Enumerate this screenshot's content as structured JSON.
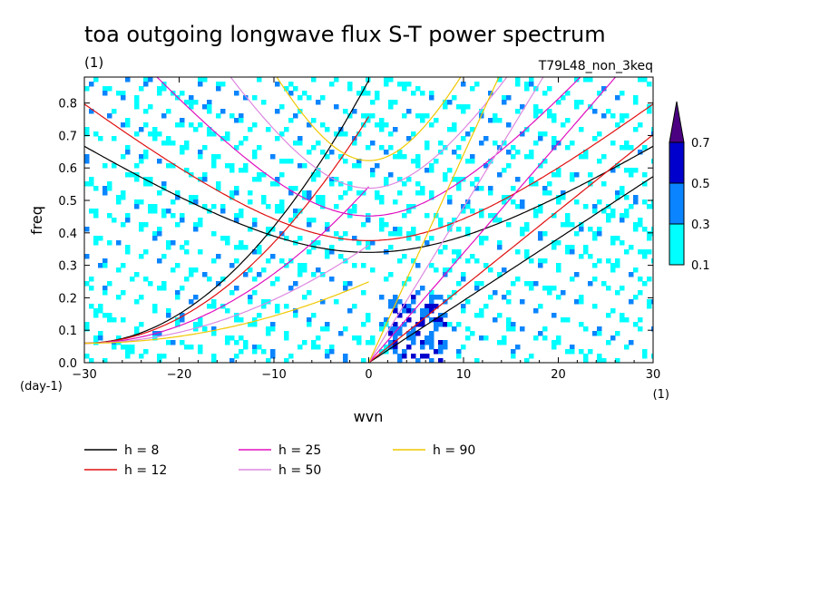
{
  "chart_data": {
    "type": "heatmap",
    "title": "toa outgoing longwave flux S-T power spectrum",
    "subtitle_left": "(1)",
    "subtitle_right": "T79L48_non_3keq",
    "xlabel": "wvn",
    "ylabel": "freq",
    "x_unit": "(1)",
    "y_unit": "(day-1)",
    "xlim": [
      -30,
      30
    ],
    "ylim": [
      0,
      0.88
    ],
    "x_ticks": [
      -30,
      -20,
      -10,
      0,
      10,
      20,
      30
    ],
    "y_ticks": [
      0.0,
      0.1,
      0.2,
      0.3,
      0.4,
      0.5,
      0.6,
      0.7,
      0.8
    ],
    "y_tick_labels": [
      "0.0",
      "0.1",
      "0.2",
      "0.3",
      "0.4",
      "0.5",
      "0.6",
      "0.7",
      "0.8"
    ],
    "colorbar": {
      "levels": [
        "0.1",
        "0.3",
        "0.5",
        "0.7"
      ],
      "colors": [
        "#00ffff",
        "#0a84ff",
        "#0000cd",
        "#4b0082"
      ]
    },
    "dispersion_curves": [
      {
        "label": "h =  8",
        "h": 8,
        "color": "#000000"
      },
      {
        "label": "h = 12",
        "h": 12,
        "color": "#e01010"
      },
      {
        "label": "h = 25",
        "h": 25,
        "color": "#e010c0"
      },
      {
        "label": "h = 50",
        "h": 50,
        "color": "#dd88e0"
      },
      {
        "label": "h = 90",
        "h": 90,
        "color": "#f0c800"
      }
    ]
  }
}
